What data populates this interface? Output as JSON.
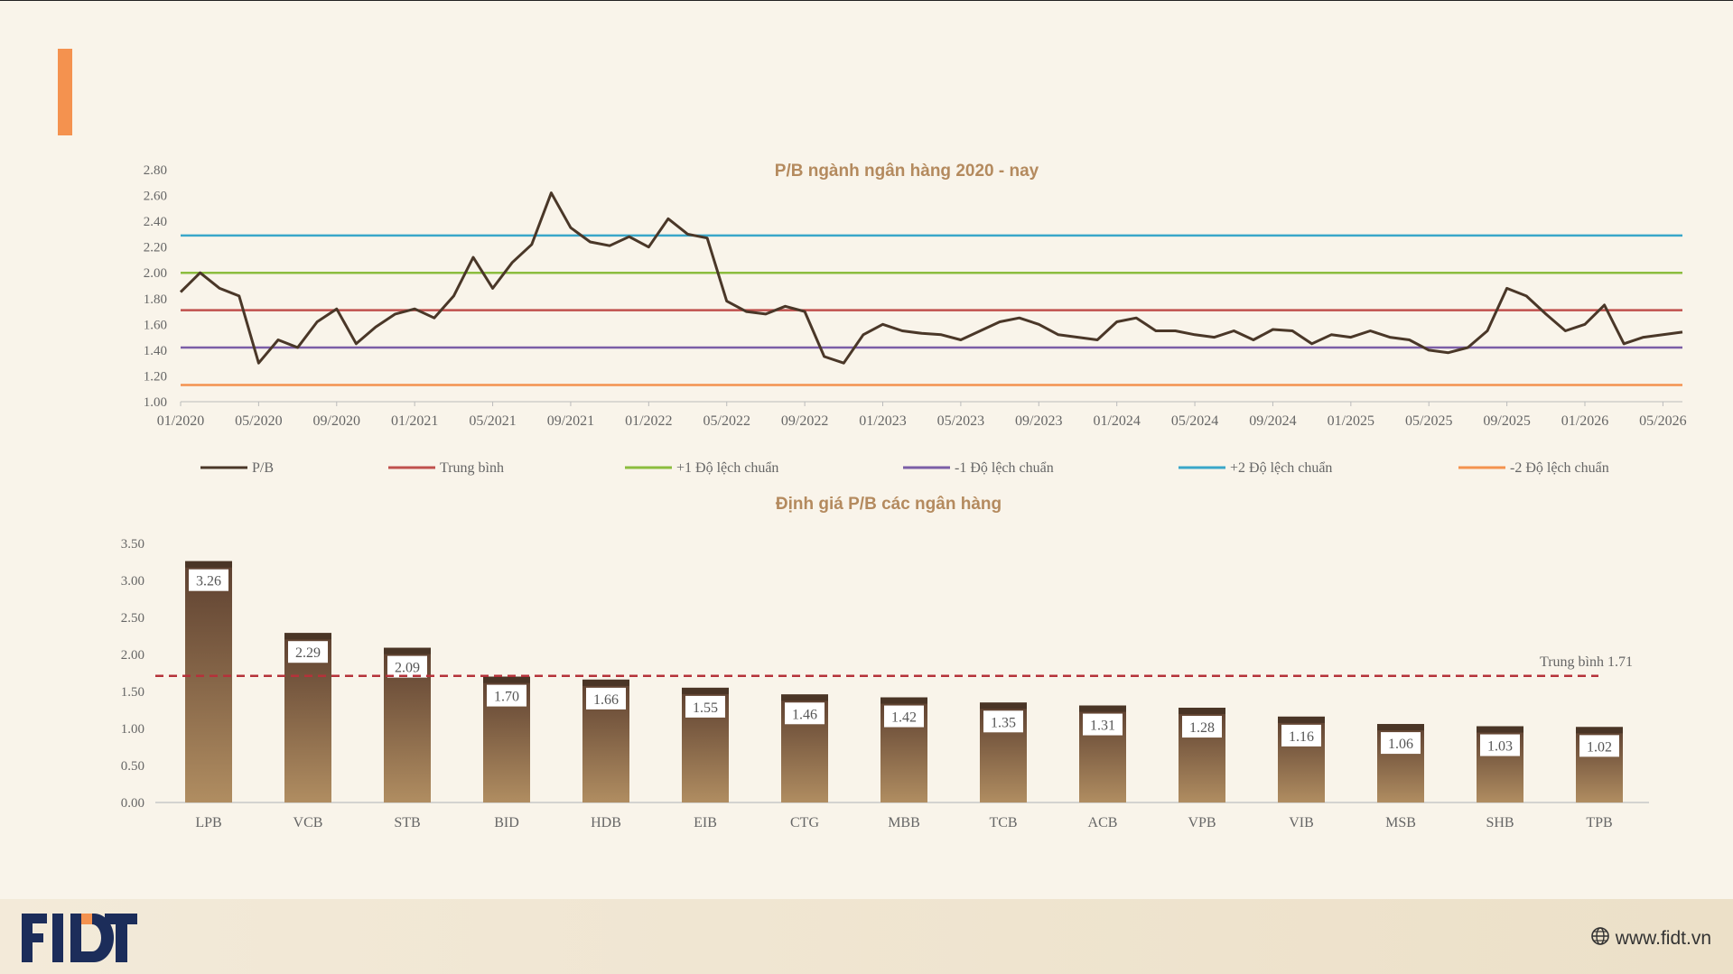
{
  "footer": {
    "website": "www.fidt.vn",
    "logo_text": "FIDT"
  },
  "colors": {
    "background": "#f9f4ea",
    "accent": "#f4924f",
    "pb_line": "#4a3728",
    "mean_line": "#c0504d",
    "plus1": "#8cbd3f",
    "minus1": "#7b5ea7",
    "plus2": "#3aa7c9",
    "minus2": "#f4924f",
    "title_text": "#b48a5e",
    "bar_top": "#5d4030",
    "bar_bottom": "#b08d61"
  },
  "chart_data": [
    {
      "type": "line",
      "title": "P/B ngành ngân hàng 2020 - nay",
      "ylim": [
        1.0,
        2.8
      ],
      "yticks": [
        "1.00",
        "1.20",
        "1.40",
        "1.60",
        "1.80",
        "2.00",
        "2.20",
        "2.40",
        "2.60",
        "2.80"
      ],
      "xlim": [
        "2020-01",
        "2026-06"
      ],
      "xticks": [
        "01/2020",
        "05/2020",
        "09/2020",
        "01/2021",
        "05/2021",
        "09/2021",
        "01/2022",
        "05/2022",
        "09/2022",
        "01/2023",
        "05/2023",
        "09/2023",
        "01/2024",
        "05/2024",
        "09/2024",
        "01/2025",
        "05/2025",
        "09/2025",
        "01/2026",
        "05/2026"
      ],
      "legend_position": "bottom",
      "series": [
        {
          "name": "P/B",
          "x": [
            "2020-01",
            "2020-02",
            "2020-03",
            "2020-04",
            "2020-05",
            "2020-06",
            "2020-07",
            "2020-08",
            "2020-09",
            "2020-10",
            "2020-11",
            "2020-12",
            "2021-01",
            "2021-02",
            "2021-03",
            "2021-04",
            "2021-05",
            "2021-06",
            "2021-07",
            "2021-08",
            "2021-09",
            "2021-10",
            "2021-11",
            "2021-12",
            "2022-01",
            "2022-02",
            "2022-03",
            "2022-04",
            "2022-05",
            "2022-06",
            "2022-07",
            "2022-08",
            "2022-09",
            "2022-10",
            "2022-11",
            "2022-12",
            "2023-01",
            "2023-02",
            "2023-03",
            "2023-04",
            "2023-05",
            "2023-06",
            "2023-07",
            "2023-08",
            "2023-09",
            "2023-10",
            "2023-11",
            "2023-12",
            "2024-01",
            "2024-02",
            "2024-03",
            "2024-04",
            "2024-05",
            "2024-06",
            "2024-07",
            "2024-08",
            "2024-09",
            "2024-10",
            "2024-11",
            "2024-12",
            "2025-01",
            "2025-02",
            "2025-03",
            "2025-04",
            "2025-05",
            "2025-06",
            "2025-07",
            "2025-08",
            "2025-09",
            "2025-10",
            "2025-11",
            "2025-12",
            "2026-01",
            "2026-02",
            "2026-03",
            "2026-04",
            "2026-05",
            "2026-06"
          ],
          "values": [
            1.85,
            2.0,
            1.88,
            1.82,
            1.3,
            1.48,
            1.42,
            1.62,
            1.72,
            1.45,
            1.58,
            1.68,
            1.72,
            1.65,
            1.82,
            2.12,
            1.88,
            2.08,
            2.22,
            2.62,
            2.35,
            2.24,
            2.21,
            2.28,
            2.2,
            2.42,
            2.3,
            2.27,
            1.78,
            1.7,
            1.68,
            1.74,
            1.7,
            1.35,
            1.3,
            1.52,
            1.6,
            1.55,
            1.53,
            1.52,
            1.48,
            1.55,
            1.62,
            1.65,
            1.6,
            1.52,
            1.5,
            1.48,
            1.62,
            1.65,
            1.55,
            1.55,
            1.52,
            1.5,
            1.55,
            1.48,
            1.56,
            1.55,
            1.45,
            1.52,
            1.5,
            1.55,
            1.5,
            1.48,
            1.4,
            1.38,
            1.42,
            1.55,
            1.88,
            1.82,
            1.68,
            1.55,
            1.6,
            1.75,
            1.45,
            1.5,
            1.52,
            1.54
          ],
          "color": "#4a3728"
        },
        {
          "name": "Trung bình",
          "value": 1.71,
          "color": "#c0504d"
        },
        {
          "name": "+1 Độ lệch chuẩn",
          "value": 2.0,
          "color": "#8cbd3f"
        },
        {
          "name": "-1 Độ lệch chuẩn",
          "value": 1.42,
          "color": "#7b5ea7"
        },
        {
          "name": "+2 Độ lệch chuẩn",
          "value": 2.29,
          "color": "#3aa7c9"
        },
        {
          "name": "-2 Độ lệch chuẩn",
          "value": 1.13,
          "color": "#f4924f"
        }
      ]
    },
    {
      "type": "bar",
      "title": "Định giá P/B các ngân hàng",
      "ylim": [
        0,
        3.5
      ],
      "yticks": [
        "0.00",
        "0.50",
        "1.00",
        "1.50",
        "2.00",
        "2.50",
        "3.00",
        "3.50"
      ],
      "categories": [
        "LPB",
        "VCB",
        "STB",
        "BID",
        "HDB",
        "EIB",
        "CTG",
        "MBB",
        "TCB",
        "ACB",
        "VPB",
        "VIB",
        "MSB",
        "SHB",
        "TPB"
      ],
      "values": [
        3.26,
        2.29,
        2.09,
        1.7,
        1.66,
        1.55,
        1.46,
        1.42,
        1.35,
        1.31,
        1.28,
        1.16,
        1.06,
        1.03,
        1.02
      ],
      "value_labels": [
        "3.26",
        "2.29",
        "2.09",
        "1.70",
        "1.66",
        "1.55",
        "1.46",
        "1.42",
        "1.35",
        "1.31",
        "1.28",
        "1.16",
        "1.06",
        "1.03",
        "1.02"
      ],
      "average": {
        "value": 1.71,
        "label": "Trung bình 1.71"
      }
    }
  ]
}
